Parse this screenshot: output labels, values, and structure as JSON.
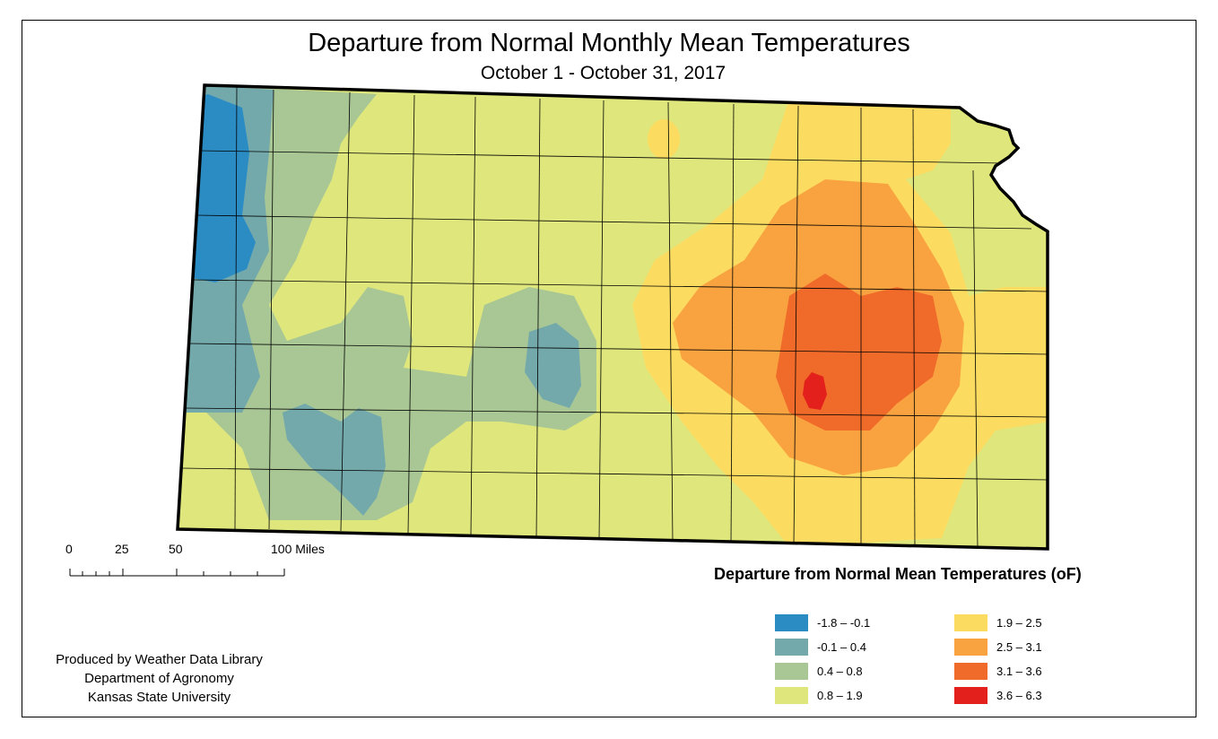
{
  "title": "Departure from Normal Monthly Mean Temperatures",
  "subtitle": "October 1 - October 31, 2017",
  "scale_bar": {
    "labels": [
      "0",
      "25",
      "50",
      "100 Miles"
    ]
  },
  "legend": {
    "title": "Departure from Normal Mean Temperatures (oF)",
    "items": [
      {
        "label": "-1.8 – -0.1",
        "color": "#2b8cc4"
      },
      {
        "label": "-0.1 – 0.4",
        "color": "#74a9ac"
      },
      {
        "label": "0.4 – 0.8",
        "color": "#a9c795"
      },
      {
        "label": "0.8 – 1.9",
        "color": "#dfe77c"
      },
      {
        "label": "1.9 – 2.5",
        "color": "#fbdc60"
      },
      {
        "label": "2.5 – 3.1",
        "color": "#f9a340"
      },
      {
        "label": "3.1 – 3.6",
        "color": "#f06a2a"
      },
      {
        "label": "3.6 – 6.3",
        "color": "#e3201c"
      }
    ]
  },
  "credits": {
    "line1": "Produced by Weather Data Library",
    "line2": "Department of Agronomy",
    "line3": "Kansas State University"
  }
}
